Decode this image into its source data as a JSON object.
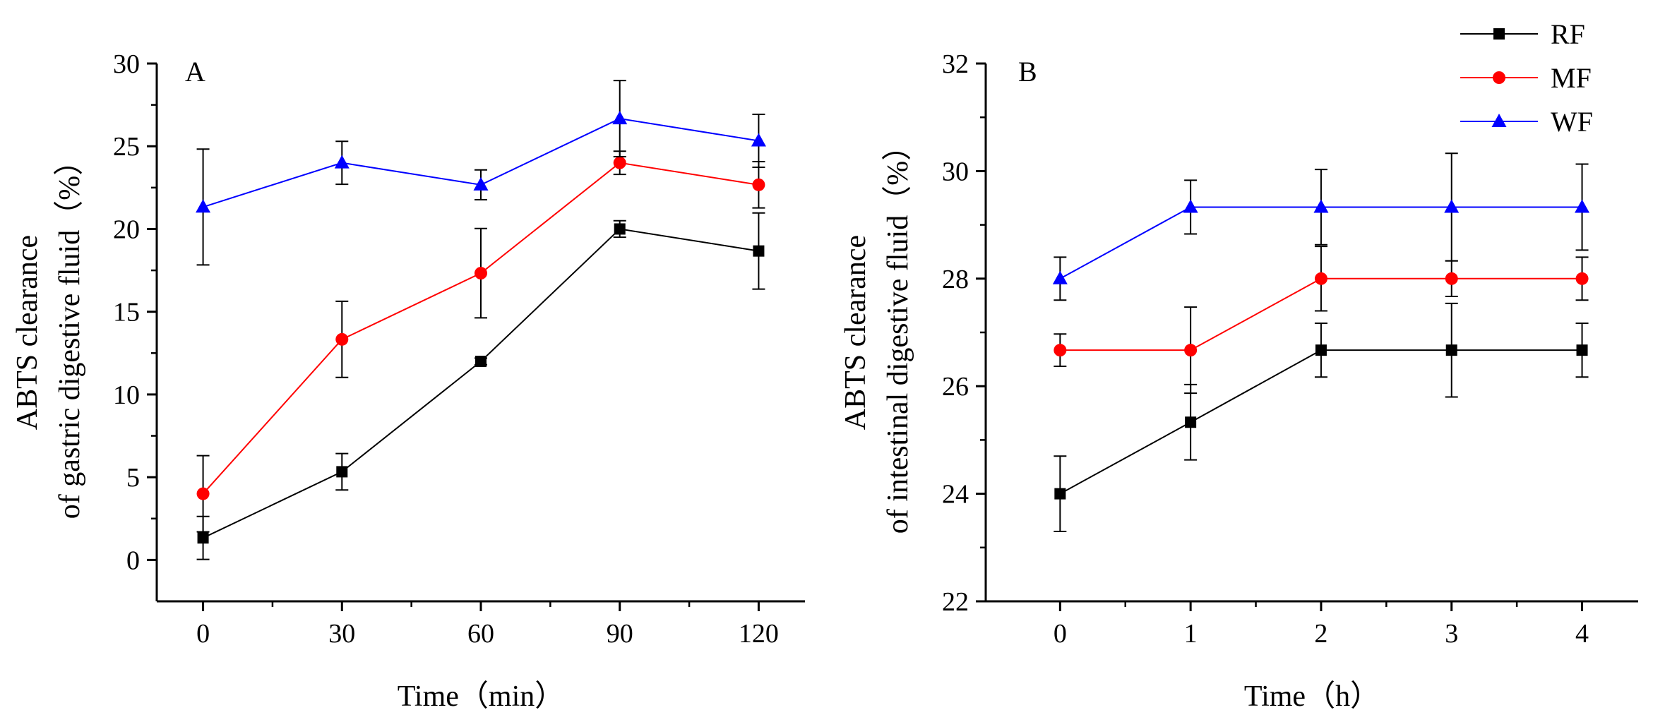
{
  "legend": [
    {
      "name": "RF",
      "color": "#000000",
      "marker": "square"
    },
    {
      "name": "MF",
      "color": "#ff0000",
      "marker": "circle"
    },
    {
      "name": "WF",
      "color": "#0000ff",
      "marker": "triangle"
    }
  ],
  "chart_data": [
    {
      "type": "line",
      "panel": "A",
      "title": "",
      "xlabel": "Time（min）",
      "ylabel_line1": "ABTS clearance",
      "ylabel_line2": "of gastric digestive fluid（%）",
      "x": [
        0,
        30,
        60,
        90,
        120
      ],
      "xlim": [
        -10,
        130
      ],
      "ylim": [
        -2.5,
        30
      ],
      "xticks": [
        0,
        30,
        60,
        90,
        120
      ],
      "yticks": [
        0,
        5,
        10,
        15,
        20,
        25,
        30
      ],
      "series": [
        {
          "name": "RF",
          "color": "#000000",
          "marker": "square",
          "values": [
            1.33,
            5.33,
            12.0,
            20.0,
            18.67
          ],
          "errors": [
            1.3,
            1.1,
            0.2,
            0.5,
            2.3
          ]
        },
        {
          "name": "MF",
          "color": "#ff0000",
          "marker": "circle",
          "values": [
            4.0,
            13.33,
            17.33,
            24.0,
            22.67
          ],
          "errors": [
            2.3,
            2.3,
            2.7,
            0.7,
            1.4
          ]
        },
        {
          "name": "WF",
          "color": "#0000ff",
          "marker": "triangle",
          "values": [
            21.33,
            24.0,
            22.67,
            26.67,
            25.33
          ],
          "errors": [
            3.5,
            1.3,
            0.9,
            2.3,
            1.6
          ]
        }
      ]
    },
    {
      "type": "line",
      "panel": "B",
      "title": "",
      "xlabel": "Time（h）",
      "ylabel_line1": "ABTS clearance",
      "ylabel_line2": "of intestinal digestive fluid（%）",
      "x": [
        0,
        1,
        2,
        3,
        4
      ],
      "xlim": [
        -0.57,
        4.43
      ],
      "ylim": [
        22,
        32
      ],
      "xticks": [
        0,
        1,
        2,
        3,
        4
      ],
      "yticks": [
        22,
        24,
        26,
        28,
        30,
        32
      ],
      "series": [
        {
          "name": "RF",
          "color": "#000000",
          "marker": "square",
          "values": [
            24.0,
            25.33,
            26.67,
            26.67,
            26.67
          ],
          "errors": [
            0.7,
            0.7,
            0.5,
            0.87,
            0.5
          ]
        },
        {
          "name": "MF",
          "color": "#ff0000",
          "marker": "circle",
          "values": [
            26.67,
            26.67,
            28.0,
            28.0,
            28.0
          ],
          "errors": [
            0.3,
            0.8,
            0.6,
            0.33,
            0.4
          ]
        },
        {
          "name": "WF",
          "color": "#0000ff",
          "marker": "triangle",
          "values": [
            28.0,
            29.33,
            29.33,
            29.33,
            29.33
          ],
          "errors": [
            0.4,
            0.5,
            0.7,
            1.0,
            0.8
          ]
        }
      ]
    }
  ]
}
